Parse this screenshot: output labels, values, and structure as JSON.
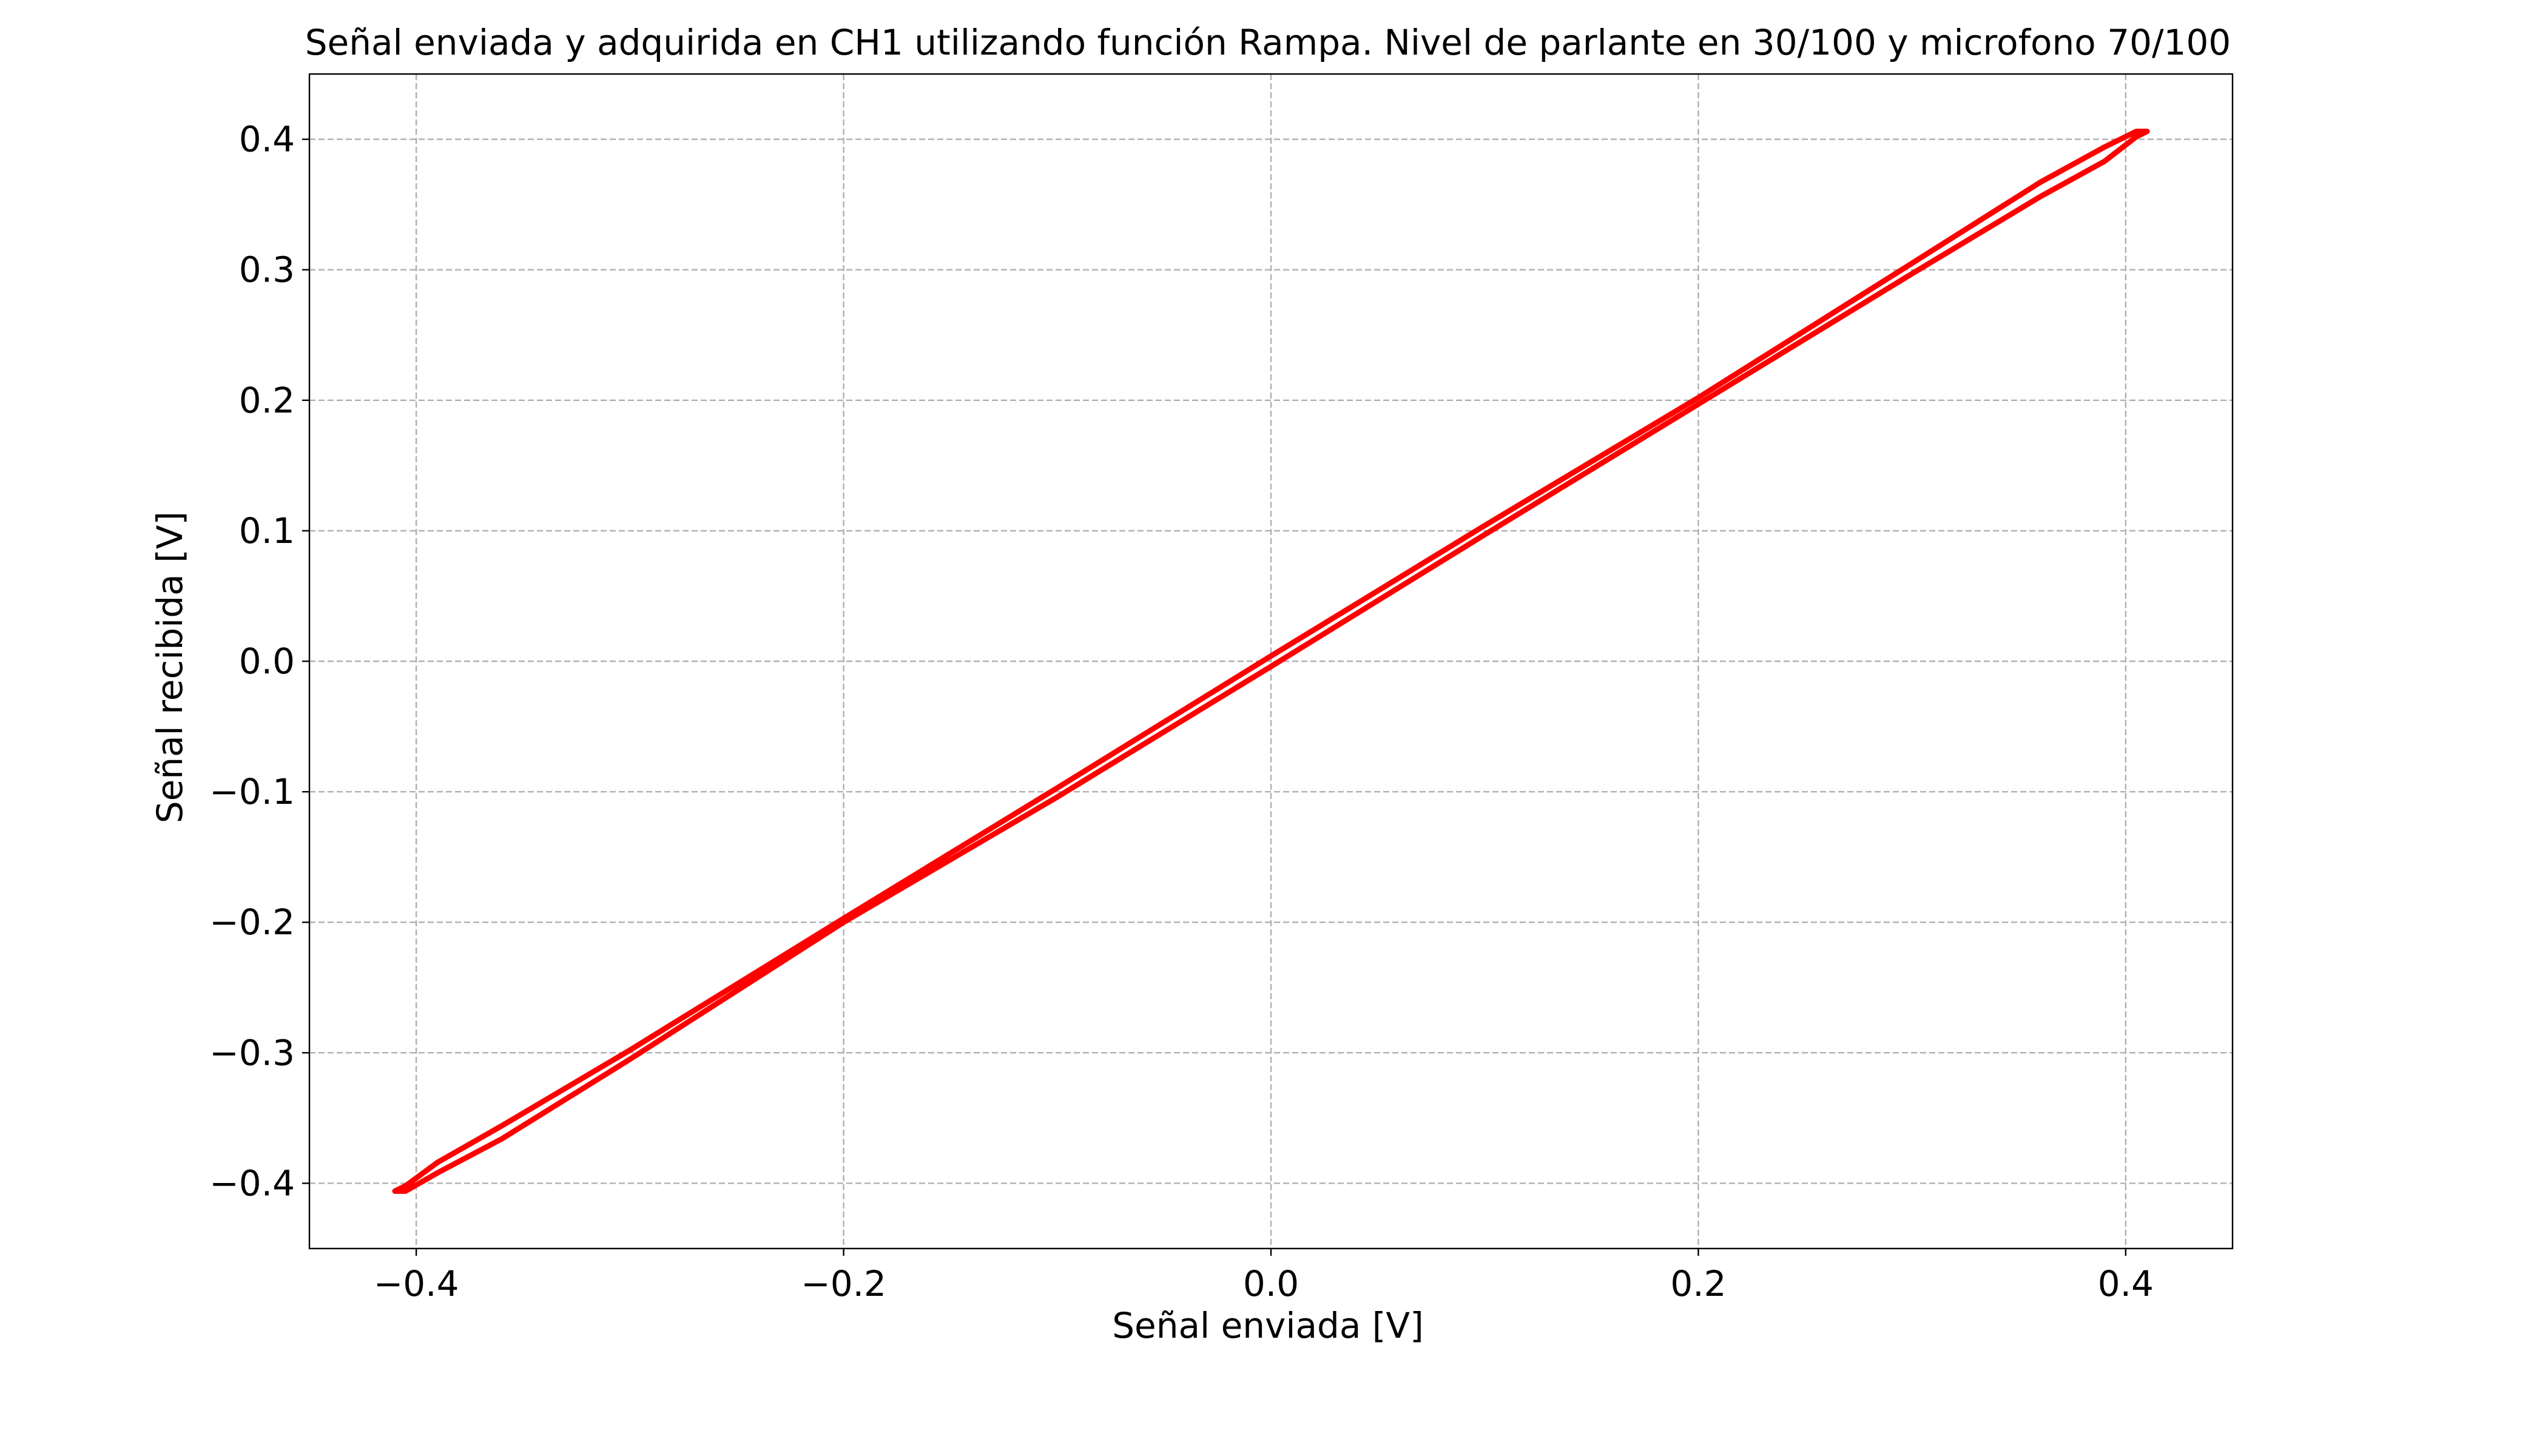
{
  "chart_data": {
    "type": "line",
    "title": "Señal enviada y adquirida en CH1 utilizando función Rampa. Nivel de parlante en 30/100 y microfono 70/100",
    "xlabel": "Señal enviada [V]",
    "ylabel": "Señal recibida [V]",
    "xlim": [
      -0.45,
      0.45
    ],
    "ylim": [
      -0.45,
      0.45
    ],
    "grid": true,
    "x_ticks": [
      -0.4,
      -0.2,
      0.0,
      0.2,
      0.4
    ],
    "y_ticks": [
      -0.4,
      -0.3,
      -0.2,
      -0.1,
      0.0,
      0.1,
      0.2,
      0.3,
      0.4
    ],
    "x_tick_labels": [
      "−0.4",
      "−0.2",
      "0.0",
      "0.2",
      "0.4"
    ],
    "y_tick_labels": [
      "−0.4",
      "−0.3",
      "−0.2",
      "−0.1",
      "0.0",
      "0.1",
      "0.2",
      "0.3",
      "0.4"
    ],
    "series": [
      {
        "color": "#ff0000",
        "x": [
          -0.41,
          -0.405,
          -0.39,
          -0.36,
          -0.3,
          -0.2,
          -0.1,
          0.0,
          0.1,
          0.2,
          0.3,
          0.36,
          0.39,
          0.405,
          0.41,
          0.405,
          0.39,
          0.36,
          0.3,
          0.2,
          0.1,
          0.0,
          -0.1,
          -0.2,
          -0.3,
          -0.36,
          -0.39,
          -0.405,
          -0.41
        ],
        "y": [
          -0.406,
          -0.406,
          -0.392,
          -0.366,
          -0.305,
          -0.2,
          -0.104,
          -0.004,
          0.097,
          0.197,
          0.297,
          0.356,
          0.383,
          0.402,
          0.406,
          0.406,
          0.394,
          0.367,
          0.305,
          0.202,
          0.104,
          0.004,
          -0.097,
          -0.197,
          -0.298,
          -0.356,
          -0.384,
          -0.402,
          -0.406
        ]
      }
    ]
  }
}
